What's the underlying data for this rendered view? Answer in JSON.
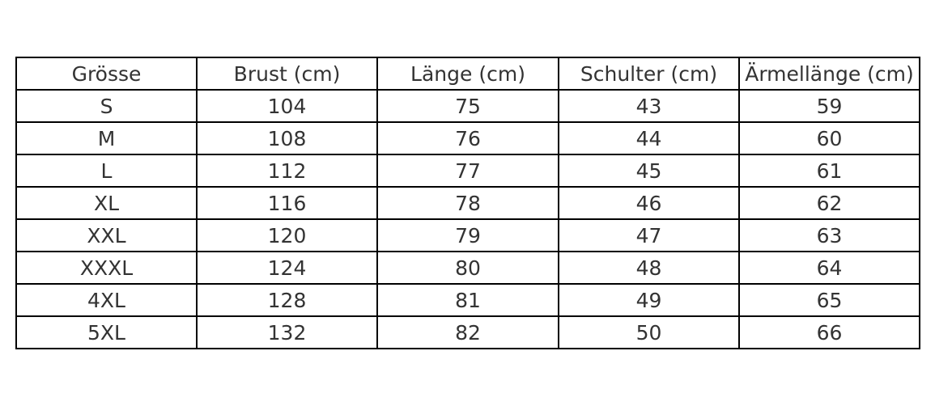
{
  "chart_data": {
    "type": "table",
    "columns": [
      "Grösse",
      "Brust (cm)",
      "Länge (cm)",
      "Schulter (cm)",
      "Ärmellänge (cm)"
    ],
    "rows": [
      [
        "S",
        "104",
        "75",
        "43",
        "59"
      ],
      [
        "M",
        "108",
        "76",
        "44",
        "60"
      ],
      [
        "L",
        "112",
        "77",
        "45",
        "61"
      ],
      [
        "XL",
        "116",
        "78",
        "46",
        "62"
      ],
      [
        "XXL",
        "120",
        "79",
        "47",
        "63"
      ],
      [
        "XXXL",
        "124",
        "80",
        "48",
        "64"
      ],
      [
        "4XL",
        "128",
        "81",
        "49",
        "65"
      ],
      [
        "5XL",
        "132",
        "82",
        "50",
        "66"
      ]
    ],
    "colors": {
      "text": "#333333",
      "border": "#000000",
      "background": "#ffffff"
    }
  }
}
